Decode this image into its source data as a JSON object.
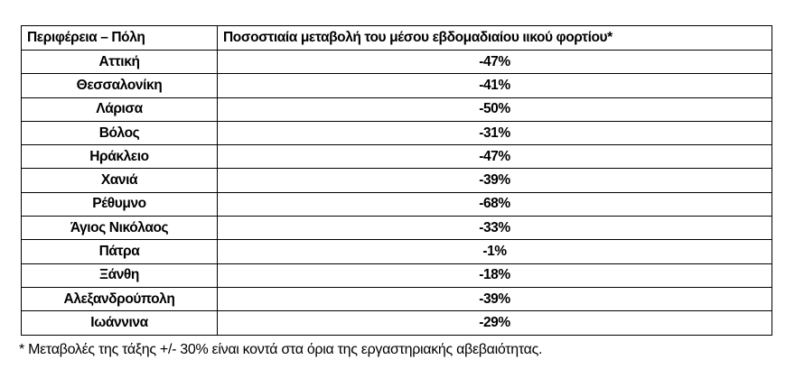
{
  "table": {
    "headers": [
      "Περιφέρεια – Πόλη",
      "Ποσοστιαία μεταβολή του μέσου εβδομαδιαίου ιικού φορτίου*"
    ],
    "rows": [
      [
        "Αττική",
        "-47%"
      ],
      [
        "Θεσσαλονίκη",
        "-41%"
      ],
      [
        "Λάρισα",
        "-50%"
      ],
      [
        "Βόλος",
        "-31%"
      ],
      [
        "Ηράκλειο",
        "-47%"
      ],
      [
        "Χανιά",
        "-39%"
      ],
      [
        "Ρέθυμνο",
        "-68%"
      ],
      [
        "Άγιος Νικόλαος",
        "-33%"
      ],
      [
        "Πάτρα",
        "-1%"
      ],
      [
        "Ξάνθη",
        "-18%"
      ],
      [
        "Αλεξανδρούπολη",
        "-39%"
      ],
      [
        "Ιωάννινα",
        "-29%"
      ]
    ]
  },
  "footnote": "* Μεταβολές της τάξης +/- 30% είναι κοντά στα όρια της εργαστηριακής αβεβαιότητας."
}
